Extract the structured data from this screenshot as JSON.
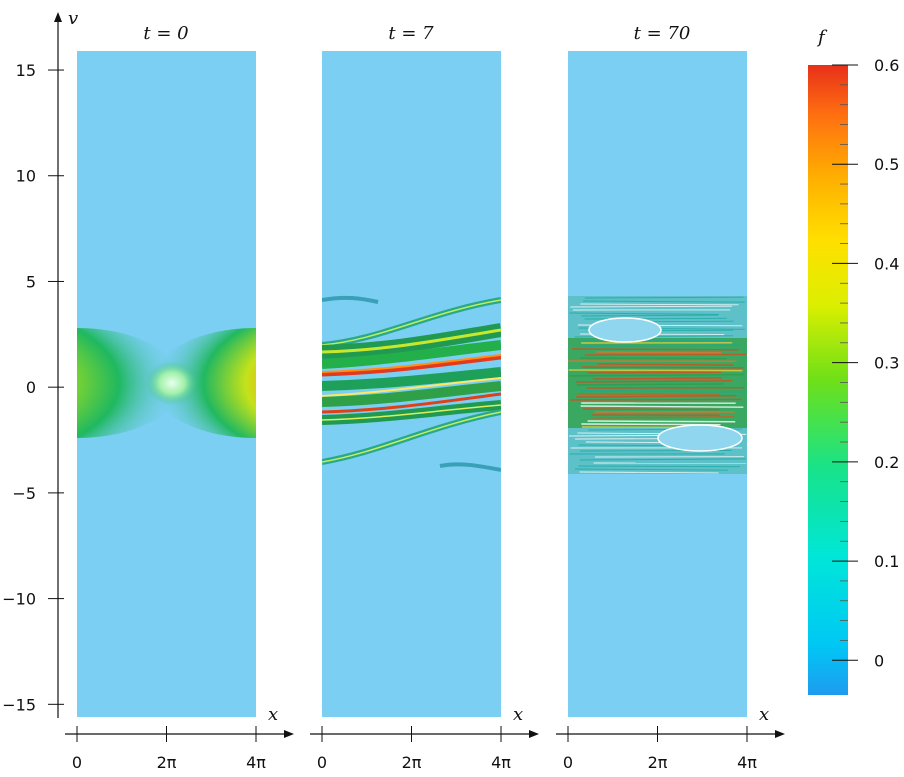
{
  "chart_data": {
    "type": "heatmap",
    "panels": [
      {
        "title": "t = 0",
        "t": "0"
      },
      {
        "title": "t = 7",
        "t": "7"
      },
      {
        "title": "t = 70",
        "t": "70"
      }
    ],
    "xlabel": "x",
    "ylabel": "v",
    "x_ticks": [
      "0",
      "2π",
      "4π"
    ],
    "x_range": [
      0,
      12.566
    ],
    "y_ticks": [
      "15",
      "10",
      "5",
      "0",
      "−5",
      "−10",
      "−15"
    ],
    "y_tick_values": [
      15,
      10,
      5,
      0,
      -5,
      -10,
      -15
    ],
    "ylim": [
      -15.6,
      15.9
    ],
    "colorbar": {
      "label": "f",
      "ticks": [
        "0.6",
        "0.5",
        "0.4",
        "0.3",
        "0.2",
        "0.1",
        "0"
      ],
      "tick_values": [
        0.6,
        0.5,
        0.4,
        0.3,
        0.2,
        0.1,
        0
      ],
      "range": [
        -0.035,
        0.6
      ],
      "colors": [
        "#1e9bef",
        "#00e6f0",
        "#18e38a",
        "#23d23c",
        "#8be600",
        "#f2f200",
        "#ffb400",
        "#ff7a10",
        "#e8301a"
      ]
    },
    "background_color": "#7acff2"
  }
}
